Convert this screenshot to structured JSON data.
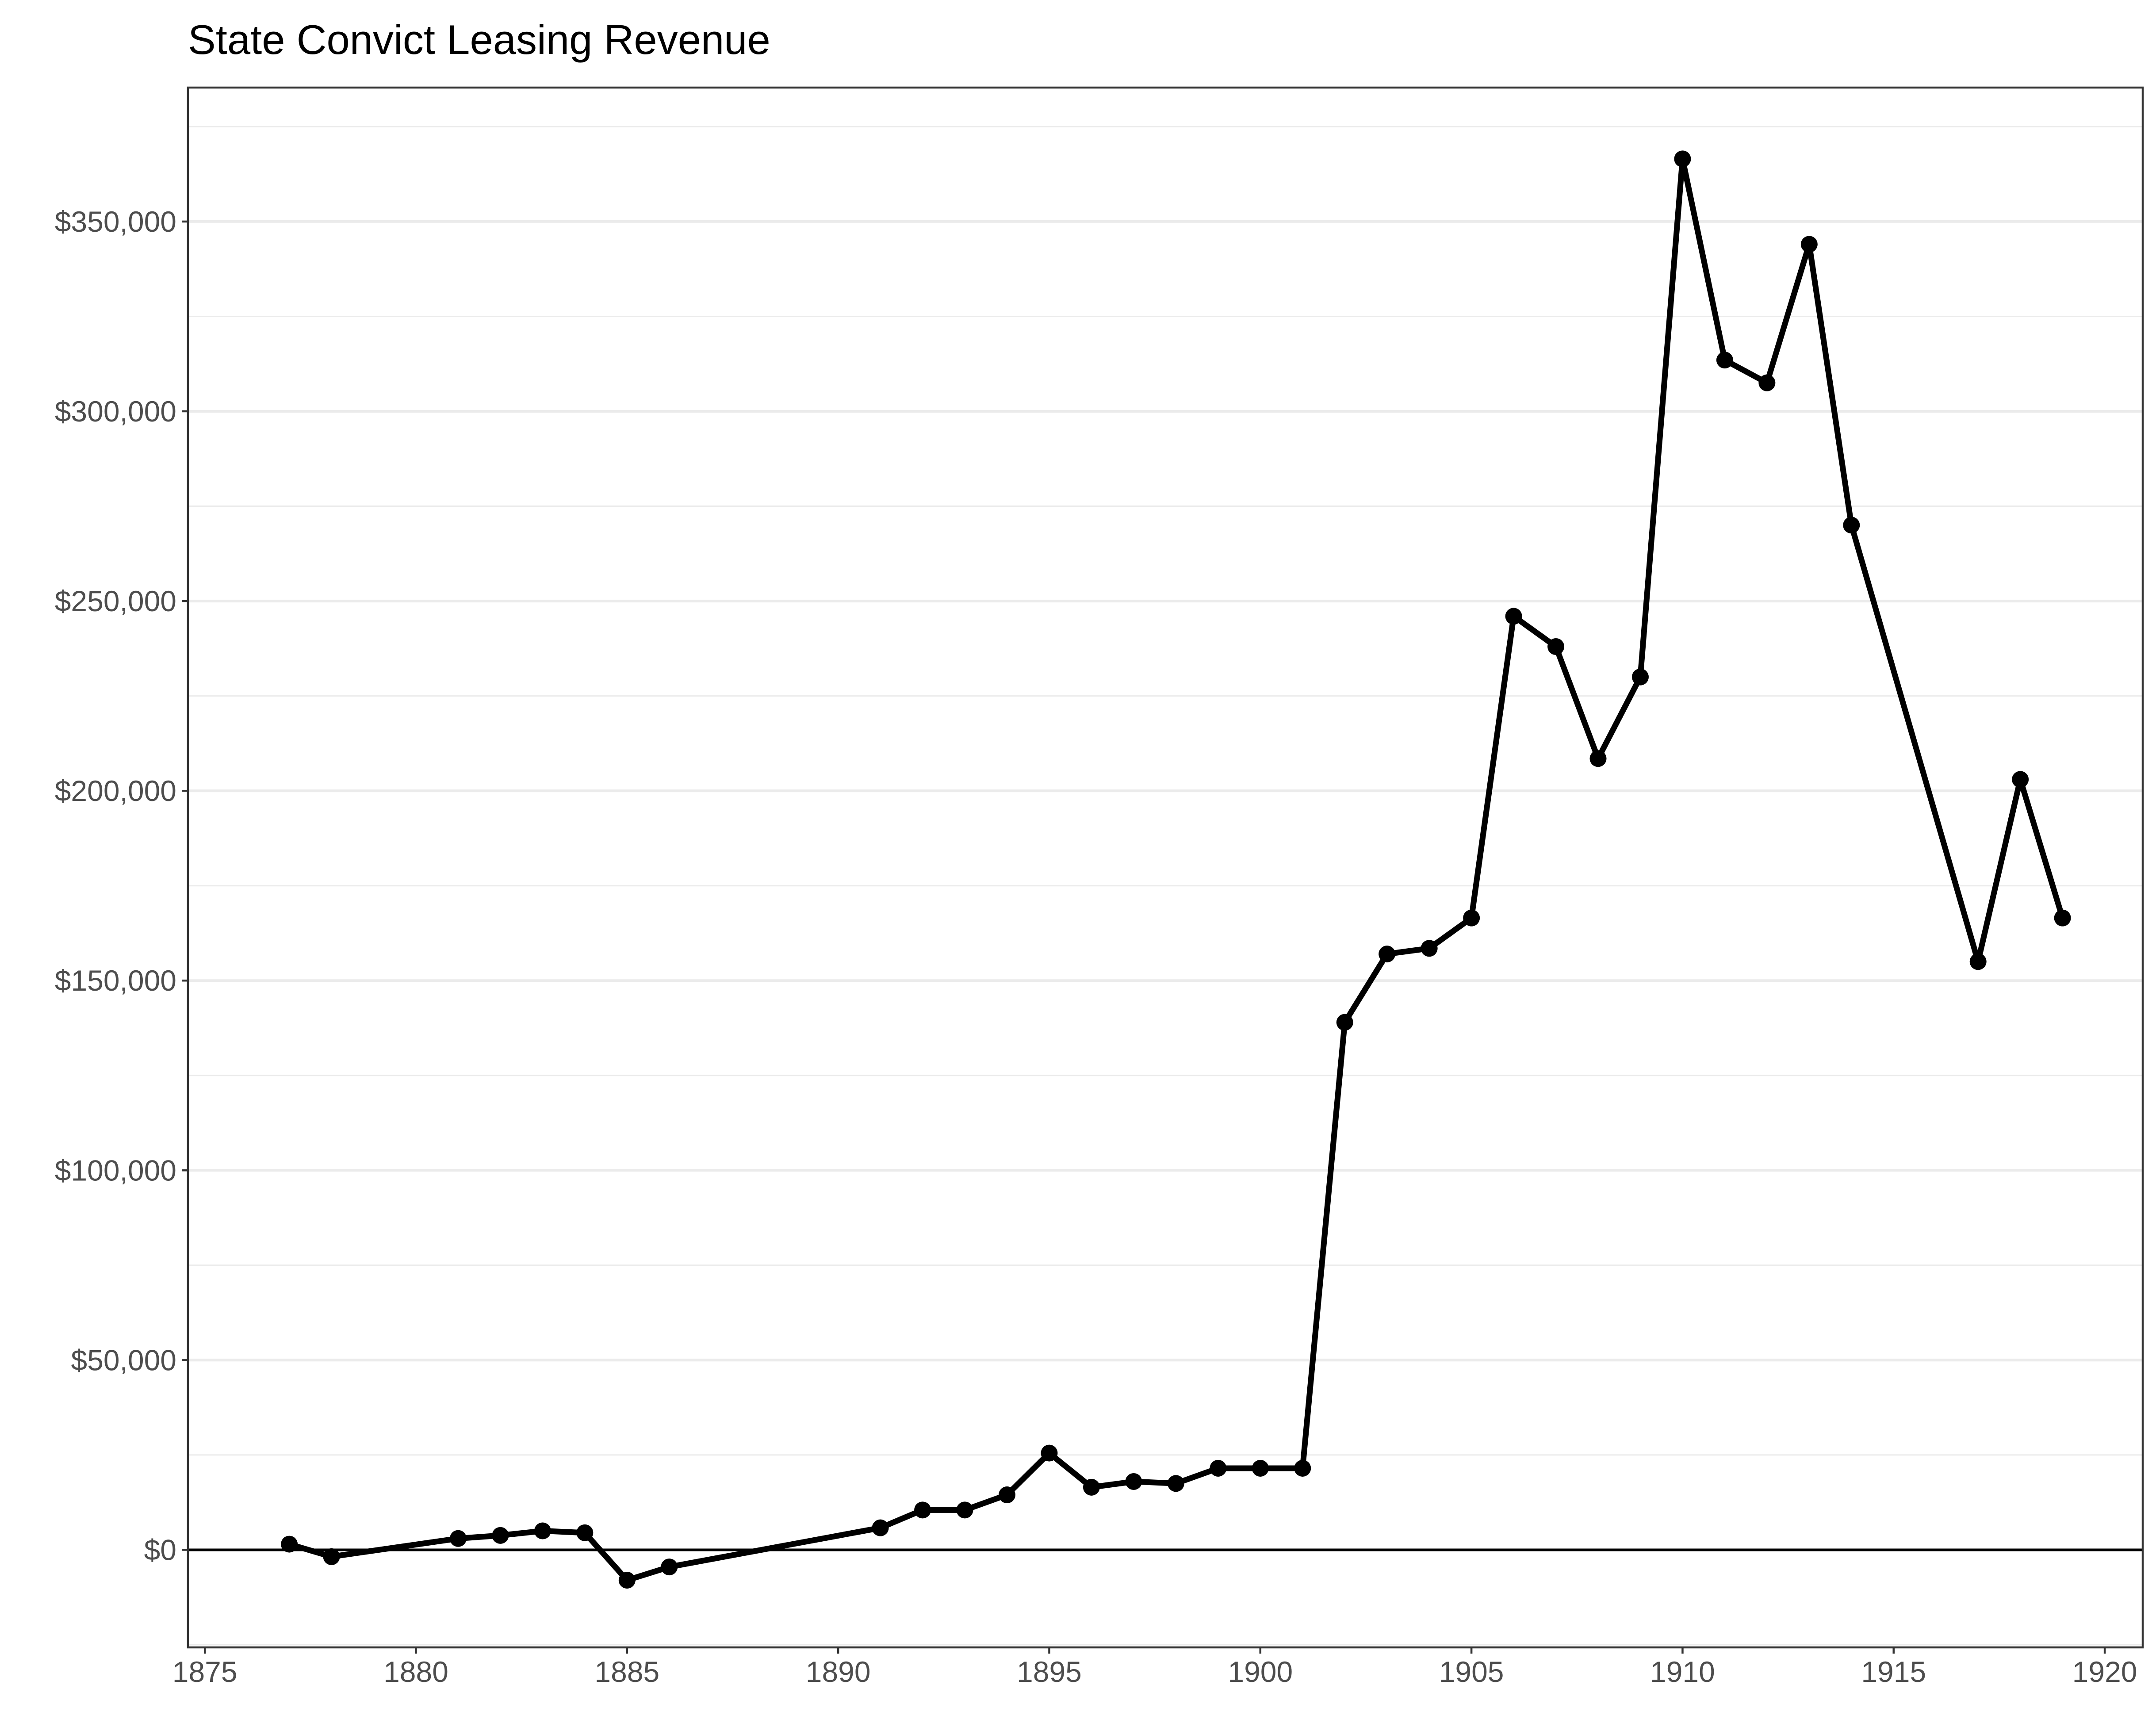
{
  "chart_data": {
    "type": "line",
    "title": "State Convict Leasing Revenue",
    "xlabel": "",
    "ylabel": "",
    "xlim": [
      1874.6,
      1920.9
    ],
    "ylim": [
      -25700,
      385300
    ],
    "x_ticks": [
      1875,
      1880,
      1885,
      1890,
      1895,
      1900,
      1905,
      1910,
      1915,
      1920
    ],
    "y_ticks": [
      0,
      50000,
      100000,
      150000,
      200000,
      250000,
      300000,
      350000
    ],
    "y_tick_labels": [
      "$0",
      "$50,000",
      "$100,000",
      "$150,000",
      "$200,000",
      "$250,000",
      "$300,000",
      "$350,000"
    ],
    "x_tick_labels": [
      "1875",
      "1880",
      "1885",
      "1890",
      "1895",
      "1900",
      "1905",
      "1910",
      "1915",
      "1920"
    ],
    "reference_line": 0,
    "grid": true,
    "legend": "none",
    "colors": {
      "line": "#000000",
      "grid": "#ebebeb",
      "axis_text": "#4d4d4d",
      "background": "#ffffff"
    },
    "series": [
      {
        "x": [
          1877,
          1878,
          1881,
          1882,
          1883,
          1884,
          1885,
          1886,
          1891,
          1892,
          1893,
          1894,
          1895,
          1896,
          1897,
          1898,
          1899,
          1900,
          1901,
          1902,
          1903,
          1904,
          1905,
          1906,
          1907,
          1908,
          1909,
          1910,
          1911,
          1912,
          1913,
          1914,
          1917,
          1918,
          1919
        ],
        "y": [
          1500,
          -1800,
          3000,
          3800,
          5000,
          4500,
          -8000,
          -4500,
          5800,
          10500,
          10500,
          14500,
          25500,
          16500,
          18000,
          17500,
          21500,
          21500,
          21500,
          139000,
          157000,
          158500,
          166500,
          246000,
          238000,
          208500,
          230000,
          366500,
          313500,
          307500,
          344000,
          270000,
          155000,
          203000,
          166500
        ]
      }
    ]
  }
}
